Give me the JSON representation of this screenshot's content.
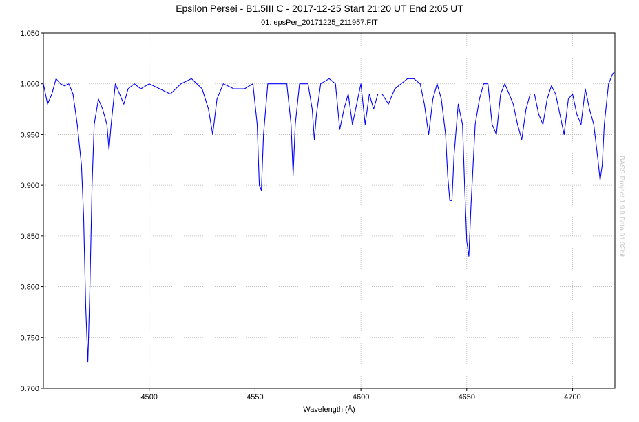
{
  "chart_data": {
    "type": "line",
    "title": "Epsilon Persei - B1.5III C - 2017-12-25 Start 21:20 UT End  2:05 UT",
    "subtitle": "01: epsPer_20171225_211957.FIT",
    "xlabel": "Wavelength (Å)",
    "ylabel": "",
    "xlim": [
      4450,
      4720
    ],
    "ylim": [
      0.7,
      1.05
    ],
    "xticks": [
      4500,
      4550,
      4600,
      4650,
      4700
    ],
    "xtick_labels": [
      "4500",
      "4550",
      "4600",
      "4650",
      "4700"
    ],
    "yticks": [
      0.7,
      0.75,
      0.8,
      0.85,
      0.9,
      0.95,
      1.0,
      1.05
    ],
    "ytick_labels": [
      "0.700",
      "0.750",
      "0.800",
      "0.850",
      "0.900",
      "0.950",
      "1.000",
      "1.050"
    ],
    "grid": true,
    "series_color": "#0000ff",
    "series": [
      {
        "x": [
          4450,
          4452,
          4454,
          4456,
          4458,
          4460,
          4462,
          4464,
          4466,
          4468,
          4469,
          4470,
          4471,
          4472,
          4473,
          4474,
          4476,
          4478,
          4480,
          4481,
          4482,
          4484,
          4486,
          4488,
          4490,
          4493,
          4496,
          4500,
          4505,
          4510,
          4515,
          4520,
          4525,
          4528,
          4530,
          4532,
          4535,
          4540,
          4545,
          4549,
          4551,
          4552,
          4553,
          4554,
          4556,
          4560,
          4565,
          4567,
          4568,
          4569,
          4571,
          4575,
          4577,
          4578,
          4579,
          4581,
          4585,
          4588,
          4590,
          4592,
          4594,
          4596,
          4598,
          4600,
          4602,
          4604,
          4606,
          4608,
          4610,
          4613,
          4616,
          4619,
          4622,
          4625,
          4628,
          4630,
          4632,
          4634,
          4636,
          4638,
          4640,
          4641,
          4642,
          4643,
          4644,
          4646,
          4648,
          4649,
          4650,
          4651,
          4652,
          4654,
          4656,
          4658,
          4660,
          4662,
          4664,
          4666,
          4668,
          4670,
          4672,
          4674,
          4676,
          4678,
          4680,
          4682,
          4684,
          4686,
          4688,
          4690,
          4692,
          4694,
          4696,
          4698,
          4700,
          4702,
          4704,
          4706,
          4708,
          4710,
          4712,
          4713,
          4714,
          4715,
          4717,
          4719,
          4720
        ],
        "y": [
          1.0,
          0.98,
          0.99,
          1.005,
          1.0,
          0.998,
          1.0,
          0.99,
          0.96,
          0.92,
          0.87,
          0.78,
          0.726,
          0.8,
          0.9,
          0.96,
          0.985,
          0.975,
          0.96,
          0.935,
          0.96,
          1.0,
          0.99,
          0.98,
          0.995,
          1.0,
          0.995,
          1.0,
          0.995,
          0.99,
          1.0,
          1.005,
          0.995,
          0.975,
          0.95,
          0.985,
          1.0,
          0.995,
          0.995,
          1.0,
          0.96,
          0.9,
          0.895,
          0.95,
          1.0,
          1.0,
          1.0,
          0.96,
          0.91,
          0.96,
          1.0,
          1.0,
          0.975,
          0.945,
          0.97,
          1.0,
          1.005,
          1.0,
          0.955,
          0.975,
          0.99,
          0.96,
          0.98,
          1.0,
          0.96,
          0.99,
          0.975,
          0.99,
          0.99,
          0.98,
          0.995,
          1.0,
          1.005,
          1.005,
          1.0,
          0.98,
          0.95,
          0.985,
          1.0,
          0.985,
          0.95,
          0.91,
          0.885,
          0.885,
          0.93,
          0.98,
          0.96,
          0.9,
          0.845,
          0.83,
          0.88,
          0.96,
          0.985,
          1.0,
          1.0,
          0.96,
          0.95,
          0.99,
          1.0,
          0.99,
          0.98,
          0.96,
          0.945,
          0.975,
          0.99,
          0.99,
          0.97,
          0.96,
          0.985,
          0.998,
          0.99,
          0.97,
          0.95,
          0.985,
          0.99,
          0.97,
          0.96,
          0.995,
          0.975,
          0.96,
          0.925,
          0.905,
          0.92,
          0.96,
          1.0,
          1.01,
          1.012
        ]
      }
    ],
    "watermark": "BASS Project 1.9.8 Beta 01 32bit"
  }
}
